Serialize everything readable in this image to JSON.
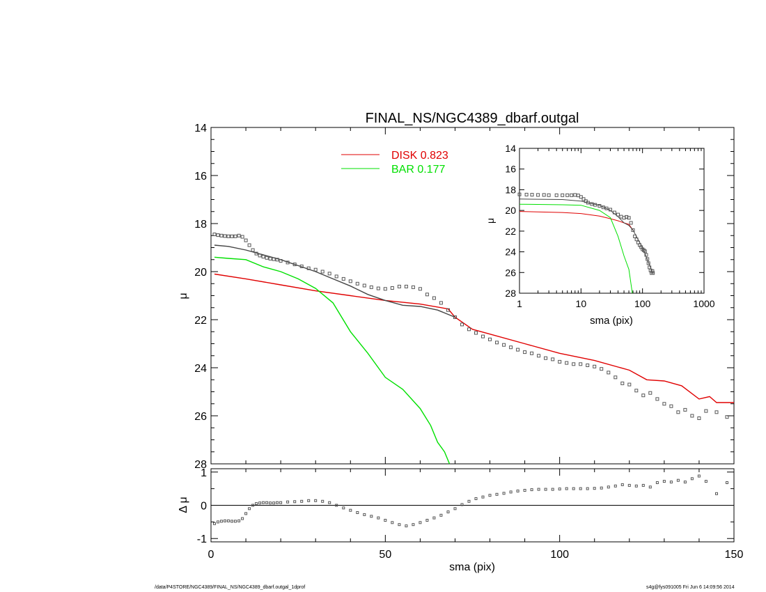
{
  "chart_data": [
    {
      "type": "line",
      "panel": "main",
      "title": "FINAL_NS/NGC4389_dbarf.outgal",
      "xlabel": "",
      "ylabel": "μ",
      "xlim": [
        0,
        150
      ],
      "ylim": [
        28,
        14
      ],
      "yticks": [
        "14",
        "16",
        "18",
        "20",
        "22",
        "24",
        "26",
        "28"
      ],
      "legend": [
        {
          "label": "DISK  0.823",
          "color": "#e00000"
        },
        {
          "label": "BAR  0.177",
          "color": "#00e000"
        }
      ],
      "series": [
        {
          "name": "DISK",
          "color": "#e00000",
          "style": "line",
          "x": [
            1,
            10,
            20,
            30,
            40,
            50,
            60,
            68,
            70,
            75,
            80,
            90,
            100,
            110,
            120,
            125,
            130,
            135,
            140,
            143,
            145,
            150
          ],
          "y": [
            20.1,
            20.3,
            20.55,
            20.8,
            21.0,
            21.2,
            21.35,
            21.55,
            21.9,
            22.4,
            22.6,
            23.0,
            23.4,
            23.7,
            24.1,
            24.5,
            24.55,
            24.75,
            25.3,
            25.2,
            25.45,
            25.45
          ]
        },
        {
          "name": "BAR",
          "color": "#00e000",
          "style": "line",
          "x": [
            1,
            5,
            10,
            15,
            20,
            25,
            30,
            35,
            40,
            45,
            50,
            55,
            60,
            63,
            65,
            67,
            68.4
          ],
          "y": [
            19.4,
            19.45,
            19.5,
            19.8,
            20.0,
            20.3,
            20.7,
            21.3,
            22.5,
            23.4,
            24.4,
            24.9,
            25.7,
            26.4,
            27.1,
            27.5,
            28.0
          ]
        },
        {
          "name": "model",
          "color": "#444444",
          "style": "line",
          "x": [
            1,
            5,
            10,
            15,
            20,
            25,
            30,
            35,
            40,
            45,
            50,
            55,
            60,
            65,
            70
          ],
          "y": [
            18.9,
            18.95,
            19.1,
            19.3,
            19.5,
            19.75,
            20.0,
            20.3,
            20.6,
            20.95,
            21.2,
            21.4,
            21.45,
            21.6,
            21.9
          ]
        },
        {
          "name": "data",
          "color": "#555555",
          "style": "markers",
          "x": [
            1,
            2,
            3,
            4,
            5,
            6,
            7,
            8,
            9,
            10,
            11,
            12,
            13,
            14,
            15,
            16,
            17,
            18,
            19,
            20,
            22,
            24,
            26,
            28,
            30,
            32,
            34,
            36,
            38,
            40,
            42,
            44,
            46,
            48,
            50,
            52,
            54,
            56,
            58,
            60,
            62,
            64,
            66,
            68,
            70,
            72,
            74,
            76,
            78,
            80,
            82,
            84,
            86,
            88,
            90,
            92,
            94,
            96,
            98,
            100,
            102,
            104,
            106,
            108,
            110,
            112,
            114,
            116,
            118,
            120,
            122,
            124,
            126,
            128,
            130,
            132,
            134,
            136,
            138,
            140,
            142,
            145,
            148
          ],
          "y": [
            18.45,
            18.48,
            18.5,
            18.52,
            18.53,
            18.53,
            18.53,
            18.5,
            18.55,
            18.7,
            18.9,
            19.1,
            19.25,
            19.33,
            19.38,
            19.43,
            19.46,
            19.48,
            19.5,
            19.55,
            19.62,
            19.7,
            19.78,
            19.86,
            19.92,
            20.0,
            20.08,
            20.2,
            20.3,
            20.4,
            20.5,
            20.58,
            20.65,
            20.7,
            20.72,
            20.68,
            20.62,
            20.62,
            20.65,
            20.72,
            20.95,
            21.1,
            21.3,
            21.6,
            21.9,
            22.2,
            22.4,
            22.55,
            22.7,
            22.82,
            22.95,
            23.05,
            23.15,
            23.25,
            23.35,
            23.4,
            23.5,
            23.6,
            23.65,
            23.75,
            23.8,
            23.85,
            23.85,
            23.9,
            23.95,
            24.05,
            24.2,
            24.4,
            24.65,
            24.7,
            24.95,
            25.15,
            25.05,
            25.3,
            25.5,
            25.6,
            25.85,
            25.75,
            26.0,
            26.1,
            25.8,
            25.85,
            26.05
          ]
        }
      ]
    },
    {
      "type": "line",
      "panel": "inset",
      "title": "",
      "xlabel": "sma (pix)",
      "ylabel": "μ",
      "xscale": "log",
      "xlim": [
        1,
        1000
      ],
      "ylim": [
        28,
        14
      ],
      "xticks": [
        "1",
        "10",
        "100",
        "1000"
      ],
      "yticks": [
        "14",
        "16",
        "18",
        "20",
        "22",
        "24",
        "26",
        "28"
      ],
      "series": [
        {
          "name": "DISK",
          "color": "#e00000",
          "style": "line",
          "x": [
            1,
            5,
            10,
            20,
            30,
            40,
            50,
            60,
            70
          ],
          "y": [
            20.1,
            20.2,
            20.3,
            20.55,
            20.8,
            21.0,
            21.2,
            21.35,
            21.9
          ]
        },
        {
          "name": "BAR",
          "color": "#00e000",
          "style": "line",
          "x": [
            1,
            5,
            10,
            20,
            30,
            40,
            50,
            60,
            65,
            68.4
          ],
          "y": [
            19.4,
            19.45,
            19.5,
            20.0,
            20.7,
            22.5,
            24.4,
            25.7,
            27.1,
            28.0
          ]
        },
        {
          "name": "model",
          "color": "#444444",
          "style": "line",
          "x": [
            1,
            5,
            10,
            20,
            30,
            40,
            50,
            60,
            70,
            100,
            150
          ],
          "y": [
            18.9,
            18.95,
            19.1,
            19.5,
            20.0,
            20.6,
            21.2,
            21.45,
            21.9,
            23.6,
            26.2
          ]
        },
        {
          "name": "data",
          "color": "#555555",
          "style": "markers",
          "x": [
            1,
            1.3,
            1.6,
            2,
            2.5,
            3,
            4,
            5,
            6,
            7,
            8,
            9,
            10,
            11,
            12,
            13,
            15,
            17,
            20,
            23,
            26,
            30,
            35,
            40,
            45,
            50,
            55,
            60,
            65,
            70,
            75,
            80,
            85,
            90,
            95,
            100,
            105,
            110,
            115,
            120,
            125,
            130,
            135,
            140,
            145,
            148
          ],
          "y": [
            18.45,
            18.47,
            18.48,
            18.5,
            18.5,
            18.52,
            18.53,
            18.53,
            18.53,
            18.53,
            18.5,
            18.55,
            18.7,
            18.9,
            19.1,
            19.25,
            19.38,
            19.46,
            19.55,
            19.7,
            19.8,
            19.92,
            20.2,
            20.4,
            20.6,
            20.72,
            20.62,
            20.72,
            21.2,
            21.9,
            22.5,
            22.8,
            23.1,
            23.35,
            23.55,
            23.75,
            23.85,
            23.95,
            24.3,
            24.7,
            25.1,
            25.5,
            25.8,
            26.05,
            25.85,
            26.05
          ]
        }
      ]
    },
    {
      "type": "scatter",
      "panel": "residual",
      "title": "",
      "xlabel": "sma (pix)",
      "ylabel": "Δ μ",
      "xlim": [
        0,
        150
      ],
      "ylim": [
        -1.1,
        1.1
      ],
      "xticks": [
        "0",
        "50",
        "100",
        "150"
      ],
      "yticks": [
        "-1",
        "0",
        "1"
      ],
      "series": [
        {
          "name": "residual",
          "color": "#555555",
          "style": "markers",
          "x": [
            1,
            2,
            3,
            4,
            5,
            6,
            7,
            8,
            9,
            10,
            11,
            12,
            13,
            14,
            15,
            16,
            17,
            18,
            19,
            20,
            22,
            24,
            26,
            28,
            30,
            32,
            34,
            36,
            38,
            40,
            42,
            44,
            46,
            48,
            50,
            52,
            54,
            56,
            58,
            60,
            62,
            64,
            66,
            68,
            70,
            72,
            74,
            76,
            78,
            80,
            82,
            84,
            86,
            88,
            90,
            92,
            94,
            96,
            98,
            100,
            102,
            104,
            106,
            108,
            110,
            112,
            114,
            116,
            118,
            120,
            122,
            124,
            126,
            128,
            130,
            132,
            134,
            136,
            138,
            140,
            142,
            145,
            148
          ],
          "y": [
            -0.55,
            -0.5,
            -0.48,
            -0.47,
            -0.47,
            -0.48,
            -0.48,
            -0.47,
            -0.4,
            -0.25,
            -0.1,
            0.0,
            0.05,
            0.07,
            0.08,
            0.08,
            0.07,
            0.07,
            0.08,
            0.08,
            0.1,
            0.11,
            0.12,
            0.14,
            0.14,
            0.12,
            0.08,
            0.0,
            -0.08,
            -0.15,
            -0.22,
            -0.28,
            -0.33,
            -0.38,
            -0.45,
            -0.52,
            -0.58,
            -0.62,
            -0.58,
            -0.52,
            -0.45,
            -0.38,
            -0.3,
            -0.2,
            -0.1,
            0.02,
            0.12,
            0.2,
            0.25,
            0.3,
            0.33,
            0.36,
            0.4,
            0.43,
            0.45,
            0.47,
            0.48,
            0.48,
            0.48,
            0.49,
            0.5,
            0.5,
            0.5,
            0.5,
            0.51,
            0.52,
            0.55,
            0.58,
            0.62,
            0.6,
            0.58,
            0.6,
            0.55,
            0.68,
            0.72,
            0.7,
            0.75,
            0.7,
            0.8,
            0.88,
            0.72,
            0.35,
            0.68
          ]
        }
      ]
    }
  ],
  "footer": {
    "path": "/data/P4STORE/NGC4389/FINAL_NS/NGC4389_dbarf.outgal_1dprof",
    "stamp": "s4g@fys091005  Fri Jun  6 14:09:56 2014"
  }
}
